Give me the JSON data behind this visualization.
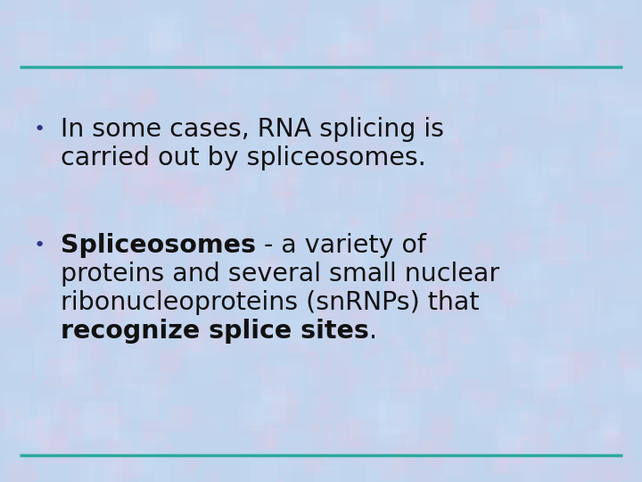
{
  "bg_color": "#c0d4ee",
  "line_color": "#2aaa9e",
  "line_lw": 2.5,
  "bullet_color": "#333388",
  "text_color": "#111111",
  "bullet1_line1": "In some cases, RNA splicing is",
  "bullet1_line2": "carried out by spliceosomes.",
  "bullet2_bold1": "Spliceosomes",
  "bullet2_rest1": " - a variety of",
  "bullet2_line2": "proteins and several small nuclear",
  "bullet2_line3": "ribonucleoproteins (snRNPs) that",
  "bullet2_bold4": "recognize splice sites",
  "bullet2_rest4": ".",
  "font_size": 20.5,
  "bullet_font_size": 14
}
